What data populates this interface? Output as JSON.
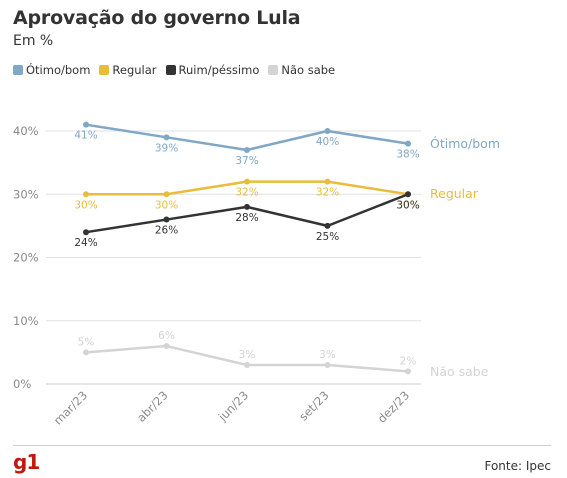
{
  "header": {
    "title": "Aprovação do governo Lula",
    "subtitle": "Em %"
  },
  "footer": {
    "logo": "g1",
    "source": "Fonte: Ipec"
  },
  "colors": {
    "otimo": "#7fa7c6",
    "regular": "#e9bd3b",
    "ruim": "#333333",
    "naosabe": "#d4d4d4",
    "grid": "#e2e2e2",
    "axis_text": "#8a8a8a",
    "brand": "#c4170c"
  },
  "chart_data": {
    "type": "line",
    "title": "Aprovação do governo Lula",
    "subtitle": "Em %",
    "categories": [
      "mar/23",
      "abr/23",
      "jun/23",
      "set/23",
      "dez/23"
    ],
    "ylim": [
      0,
      45
    ],
    "yticks": [
      0,
      10,
      20,
      30,
      40
    ],
    "ytick_labels": [
      "0%",
      "10%",
      "20%",
      "30%",
      "40%"
    ],
    "grid": true,
    "legend_position": "top-left",
    "series": [
      {
        "key": "otimo",
        "name": "Ótimo/bom",
        "values": [
          41,
          39,
          37,
          40,
          38
        ],
        "labels": [
          "41%",
          "39%",
          "37%",
          "40%",
          "38%"
        ]
      },
      {
        "key": "regular",
        "name": "Regular",
        "values": [
          30,
          30,
          32,
          32,
          30
        ],
        "labels": [
          "30%",
          "30%",
          "32%",
          "32%",
          "30%"
        ]
      },
      {
        "key": "ruim",
        "name": "Ruim/péssimo",
        "values": [
          24,
          26,
          28,
          25,
          30
        ],
        "labels": [
          "24%",
          "26%",
          "28%",
          "25%",
          "30%"
        ]
      },
      {
        "key": "naosabe",
        "name": "Não sabe",
        "values": [
          5,
          6,
          3,
          3,
          2
        ],
        "labels": [
          "5%",
          "6%",
          "3%",
          "3%",
          "2%"
        ]
      }
    ]
  }
}
